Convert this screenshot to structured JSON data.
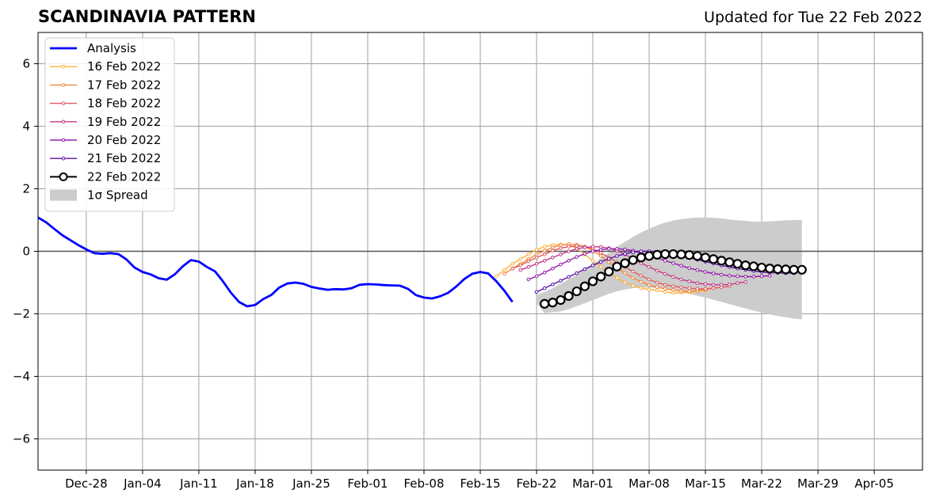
{
  "title": "SCANDINAVIA PATTERN",
  "subtitle": "Updated for Tue 22 Feb 2022",
  "chart_data": {
    "type": "line",
    "title": "SCANDINAVIA PATTERN",
    "subtitle": "Updated for Tue 22 Feb 2022",
    "xlabel": "",
    "ylabel": "",
    "x_type": "date",
    "xlim": [
      "2021-12-22",
      "2022-04-11"
    ],
    "ylim": [
      -7,
      7
    ],
    "x_ticks": [
      {
        "date": "2021-12-28",
        "label": "Dec-28"
      },
      {
        "date": "2022-01-04",
        "label": "Jan-04"
      },
      {
        "date": "2022-01-11",
        "label": "Jan-11"
      },
      {
        "date": "2022-01-18",
        "label": "Jan-18"
      },
      {
        "date": "2022-01-25",
        "label": "Jan-25"
      },
      {
        "date": "2022-02-01",
        "label": "Feb-01"
      },
      {
        "date": "2022-02-08",
        "label": "Feb-08"
      },
      {
        "date": "2022-02-15",
        "label": "Feb-15"
      },
      {
        "date": "2022-02-22",
        "label": "Feb-22"
      },
      {
        "date": "2022-03-01",
        "label": "Mar-01"
      },
      {
        "date": "2022-03-08",
        "label": "Mar-08"
      },
      {
        "date": "2022-03-15",
        "label": "Mar-15"
      },
      {
        "date": "2022-03-22",
        "label": "Mar-22"
      },
      {
        "date": "2022-03-29",
        "label": "Mar-29"
      },
      {
        "date": "2022-04-05",
        "label": "Apr-05"
      }
    ],
    "y_ticks": [
      {
        "value": -6,
        "label": "−6"
      },
      {
        "value": -4,
        "label": "−4"
      },
      {
        "value": -2,
        "label": "−2"
      },
      {
        "value": 0,
        "label": "0"
      },
      {
        "value": 2,
        "label": "2"
      },
      {
        "value": 4,
        "label": "4"
      },
      {
        "value": 6,
        "label": "6"
      }
    ],
    "grid": true,
    "zero_line": 0,
    "legend_position": "top-left",
    "analysis": {
      "name": "Analysis",
      "color": "#0000ff",
      "start": "2021-12-22",
      "values": [
        1.08,
        0.93,
        0.72,
        0.52,
        0.36,
        0.2,
        0.06,
        -0.06,
        -0.08,
        -0.06,
        -0.09,
        -0.26,
        -0.52,
        -0.66,
        -0.74,
        -0.86,
        -0.91,
        -0.74,
        -0.48,
        -0.28,
        -0.33,
        -0.5,
        -0.64,
        -0.96,
        -1.33,
        -1.62,
        -1.76,
        -1.72,
        -1.53,
        -1.4,
        -1.16,
        -1.03,
        -1.0,
        -1.04,
        -1.14,
        -1.19,
        -1.23,
        -1.21,
        -1.22,
        -1.18,
        -1.07,
        -1.05,
        -1.06,
        -1.08,
        -1.09,
        -1.1,
        -1.2,
        -1.4,
        -1.48,
        -1.51,
        -1.44,
        -1.33,
        -1.13,
        -0.89,
        -0.72,
        -0.66,
        -0.71,
        -0.96,
        -1.26,
        -1.62
      ]
    },
    "forecasts": [
      {
        "name": "16 Feb 2022",
        "color": "#fbb23c",
        "start": "2022-02-17",
        "values": [
          -0.8,
          -0.6,
          -0.4,
          -0.25,
          -0.1,
          0.05,
          0.15,
          0.2,
          0.22,
          0.2,
          0.1,
          -0.1,
          -0.3,
          -0.5,
          -0.68,
          -0.85,
          -1.0,
          -1.1,
          -1.18,
          -1.22,
          -1.25,
          -1.3,
          -1.33,
          -1.33,
          -1.31,
          -1.28,
          -1.25
        ]
      },
      {
        "name": "17 Feb 2022",
        "color": "#f4883c",
        "start": "2022-02-18",
        "values": [
          -0.72,
          -0.55,
          -0.4,
          -0.25,
          -0.1,
          0.02,
          0.12,
          0.2,
          0.23,
          0.21,
          0.15,
          0.02,
          -0.15,
          -0.35,
          -0.52,
          -0.7,
          -0.85,
          -0.98,
          -1.08,
          -1.15,
          -1.2,
          -1.24,
          -1.27,
          -1.28,
          -1.26,
          -1.22,
          -1.18
        ]
      },
      {
        "name": "18 Feb 2022",
        "color": "#e05b5e",
        "start": "2022-02-19",
        "values": [
          -0.55,
          -0.45,
          -0.32,
          -0.2,
          -0.1,
          0.02,
          0.1,
          0.15,
          0.17,
          0.15,
          0.08,
          -0.05,
          -0.2,
          -0.35,
          -0.5,
          -0.65,
          -0.78,
          -0.9,
          -1.0,
          -1.07,
          -1.12,
          -1.15,
          -1.18,
          -1.2,
          -1.2,
          -1.18,
          -1.15,
          -1.12
        ]
      },
      {
        "name": "19 Feb 2022",
        "color": "#c13a86",
        "start": "2022-02-20",
        "values": [
          -0.6,
          -0.5,
          -0.4,
          -0.3,
          -0.2,
          -0.1,
          0.0,
          0.08,
          0.12,
          0.15,
          0.14,
          0.1,
          0.02,
          -0.1,
          -0.24,
          -0.38,
          -0.5,
          -0.62,
          -0.72,
          -0.82,
          -0.9,
          -0.96,
          -1.02,
          -1.05,
          -1.07,
          -1.07,
          -1.06,
          -1.02,
          -0.98
        ]
      },
      {
        "name": "20 Feb 2022",
        "color": "#951bab",
        "start": "2022-02-21",
        "values": [
          -0.9,
          -0.8,
          -0.68,
          -0.55,
          -0.42,
          -0.3,
          -0.18,
          -0.08,
          0.0,
          0.05,
          0.08,
          0.08,
          0.06,
          0.02,
          -0.05,
          -0.13,
          -0.21,
          -0.3,
          -0.38,
          -0.46,
          -0.54,
          -0.6,
          -0.66,
          -0.71,
          -0.75,
          -0.78,
          -0.8,
          -0.81,
          -0.81,
          -0.8,
          -0.78
        ]
      },
      {
        "name": "21 Feb 2022",
        "color": "#5c10a3",
        "start": "2022-02-22",
        "values": [
          -1.3,
          -1.18,
          -1.06,
          -0.94,
          -0.82,
          -0.7,
          -0.57,
          -0.45,
          -0.34,
          -0.24,
          -0.15,
          -0.08,
          -0.03,
          0.0,
          0.0,
          -0.02,
          -0.05,
          -0.1,
          -0.15,
          -0.2,
          -0.27,
          -0.33,
          -0.39,
          -0.45,
          -0.5,
          -0.55,
          -0.59,
          -0.63,
          -0.66,
          -0.68,
          -0.69,
          -0.7,
          -0.7
        ]
      }
    ],
    "current_forecast": {
      "name": "22 Feb 2022",
      "color": "#000000",
      "start": "2022-02-23",
      "values": [
        -1.68,
        -1.64,
        -1.56,
        -1.43,
        -1.28,
        -1.12,
        -0.96,
        -0.81,
        -0.65,
        -0.49,
        -0.38,
        -0.28,
        -0.2,
        -0.15,
        -0.11,
        -0.09,
        -0.09,
        -0.1,
        -0.12,
        -0.15,
        -0.2,
        -0.25,
        -0.3,
        -0.35,
        -0.4,
        -0.45,
        -0.48,
        -0.52,
        -0.55,
        -0.57,
        -0.58,
        -0.59,
        -0.59
      ]
    },
    "spread": {
      "name": "1σ Spread",
      "color": "#cccccc",
      "start": "2022-02-22",
      "upper": [
        -1.4,
        -1.3,
        -1.18,
        -1.04,
        -0.9,
        -0.75,
        -0.58,
        -0.4,
        -0.22,
        -0.04,
        0.14,
        0.3,
        0.46,
        0.6,
        0.72,
        0.83,
        0.92,
        0.98,
        1.03,
        1.06,
        1.08,
        1.08,
        1.07,
        1.05,
        1.02,
        0.99,
        0.97,
        0.95,
        0.95,
        0.96,
        0.97,
        0.99,
        1.0,
        1.0
      ],
      "lower": [
        -1.65,
        -1.98,
        -1.95,
        -1.92,
        -1.85,
        -1.76,
        -1.66,
        -1.56,
        -1.46,
        -1.36,
        -1.28,
        -1.22,
        -1.18,
        -1.16,
        -1.16,
        -1.18,
        -1.21,
        -1.25,
        -1.3,
        -1.36,
        -1.42,
        -1.48,
        -1.55,
        -1.62,
        -1.69,
        -1.76,
        -1.83,
        -1.9,
        -1.96,
        -2.02,
        -2.07,
        -2.11,
        -2.15,
        -2.18
      ]
    }
  }
}
